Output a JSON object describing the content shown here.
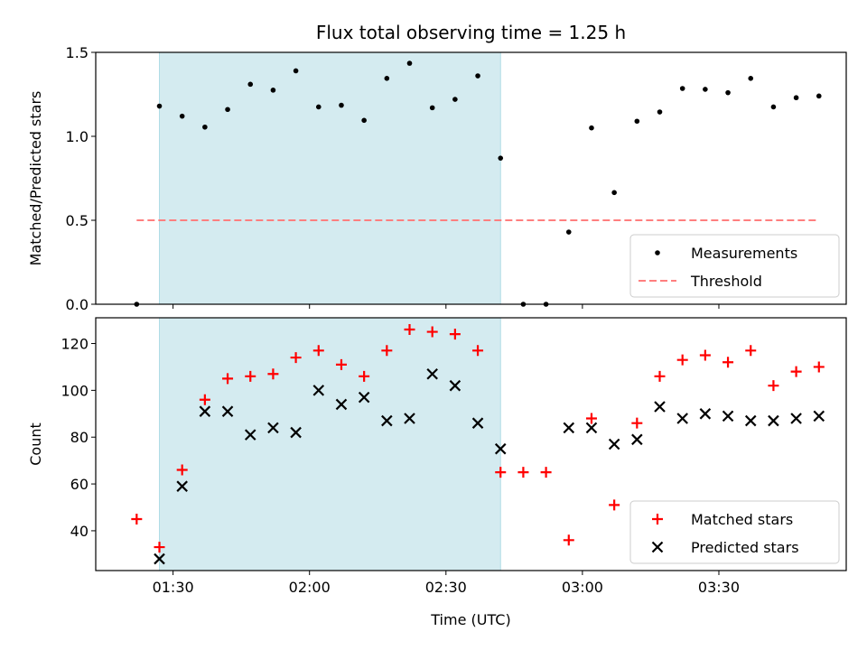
{
  "chart_data": [
    {
      "type": "scatter",
      "title": "Flux total observing time = 1.25 h",
      "ylabel": "Matched/Predicted stars",
      "xlabel": "",
      "ylim": [
        0,
        1.5
      ],
      "yticks": [
        0.0,
        0.5,
        1.0,
        1.5
      ],
      "ytick_labels": [
        "0.0",
        "0.5",
        "1.0",
        "1.5"
      ],
      "grid": false,
      "legend": "lower-right",
      "shaded_region": {
        "x_start": "01:27",
        "x_end": "02:42",
        "color": "#d4ebf0"
      },
      "series": [
        {
          "name": "Measurements",
          "marker": "dot",
          "color": "#000000",
          "points": [
            [
              "01:22",
              0.0
            ],
            [
              "01:27",
              1.18
            ],
            [
              "01:32",
              1.12
            ],
            [
              "01:37",
              1.055
            ],
            [
              "01:42",
              1.16
            ],
            [
              "01:47",
              1.31
            ],
            [
              "01:52",
              1.275
            ],
            [
              "01:57",
              1.39
            ],
            [
              "02:02",
              1.175
            ],
            [
              "02:07",
              1.185
            ],
            [
              "02:12",
              1.095
            ],
            [
              "02:17",
              1.345
            ],
            [
              "02:22",
              1.435
            ],
            [
              "02:27",
              1.17
            ],
            [
              "02:32",
              1.22
            ],
            [
              "02:37",
              1.36
            ],
            [
              "02:42",
              0.87
            ],
            [
              "02:47",
              0.0
            ],
            [
              "02:52",
              0.0
            ],
            [
              "02:57",
              0.43
            ],
            [
              "03:02",
              1.05
            ],
            [
              "03:07",
              0.665
            ],
            [
              "03:12",
              1.09
            ],
            [
              "03:17",
              1.145
            ],
            [
              "03:22",
              1.285
            ],
            [
              "03:27",
              1.28
            ],
            [
              "03:32",
              1.26
            ],
            [
              "03:37",
              1.345
            ],
            [
              "03:42",
              1.175
            ],
            [
              "03:47",
              1.23
            ],
            [
              "03:52",
              1.24
            ]
          ]
        },
        {
          "name": "Threshold",
          "marker": "dashed-line",
          "color": "#ff7f7f",
          "points": [
            [
              "01:22",
              0.5
            ],
            [
              "03:52",
              0.5
            ]
          ]
        }
      ]
    },
    {
      "type": "scatter",
      "title": "",
      "ylabel": "Count",
      "xlabel": "Time (UTC)",
      "ylim": [
        23,
        131
      ],
      "yticks": [
        40,
        60,
        80,
        100,
        120
      ],
      "ytick_labels": [
        "40",
        "60",
        "80",
        "100",
        "120"
      ],
      "xticks": [
        "01:30",
        "02:00",
        "02:30",
        "03:00",
        "03:30"
      ],
      "xlim": [
        "01:13",
        "03:58"
      ],
      "grid": false,
      "legend": "lower-right",
      "shaded_region": {
        "x_start": "01:27",
        "x_end": "02:42",
        "color": "#d4ebf0"
      },
      "series": [
        {
          "name": "Matched stars",
          "marker": "plus",
          "color": "#ff0000",
          "points": [
            [
              "01:22",
              45
            ],
            [
              "01:27",
              33
            ],
            [
              "01:32",
              66
            ],
            [
              "01:37",
              96
            ],
            [
              "01:42",
              105
            ],
            [
              "01:47",
              106
            ],
            [
              "01:52",
              107
            ],
            [
              "01:57",
              114
            ],
            [
              "02:02",
              117
            ],
            [
              "02:07",
              111
            ],
            [
              "02:12",
              106
            ],
            [
              "02:17",
              117
            ],
            [
              "02:22",
              126
            ],
            [
              "02:27",
              125
            ],
            [
              "02:32",
              124
            ],
            [
              "02:37",
              117
            ],
            [
              "02:42",
              65
            ],
            [
              "02:47",
              65
            ],
            [
              "02:52",
              65
            ],
            [
              "02:57",
              36
            ],
            [
              "03:02",
              88
            ],
            [
              "03:07",
              51
            ],
            [
              "03:12",
              86
            ],
            [
              "03:17",
              106
            ],
            [
              "03:22",
              113
            ],
            [
              "03:27",
              115
            ],
            [
              "03:32",
              112
            ],
            [
              "03:37",
              117
            ],
            [
              "03:42",
              102
            ],
            [
              "03:47",
              108
            ],
            [
              "03:52",
              110
            ]
          ]
        },
        {
          "name": "Predicted stars",
          "marker": "x",
          "color": "#000000",
          "points": [
            [
              "01:27",
              28
            ],
            [
              "01:32",
              59
            ],
            [
              "01:37",
              91
            ],
            [
              "01:42",
              91
            ],
            [
              "01:47",
              81
            ],
            [
              "01:52",
              84
            ],
            [
              "01:57",
              82
            ],
            [
              "02:02",
              100
            ],
            [
              "02:07",
              94
            ],
            [
              "02:12",
              97
            ],
            [
              "02:17",
              87
            ],
            [
              "02:22",
              88
            ],
            [
              "02:27",
              107
            ],
            [
              "02:32",
              102
            ],
            [
              "02:37",
              86
            ],
            [
              "02:42",
              75
            ],
            [
              "02:57",
              84
            ],
            [
              "03:02",
              84
            ],
            [
              "03:07",
              77
            ],
            [
              "03:12",
              79
            ],
            [
              "03:17",
              93
            ],
            [
              "03:22",
              88
            ],
            [
              "03:27",
              90
            ],
            [
              "03:32",
              89
            ],
            [
              "03:37",
              87
            ],
            [
              "03:42",
              87
            ],
            [
              "03:47",
              88
            ],
            [
              "03:52",
              89
            ]
          ]
        }
      ]
    }
  ]
}
